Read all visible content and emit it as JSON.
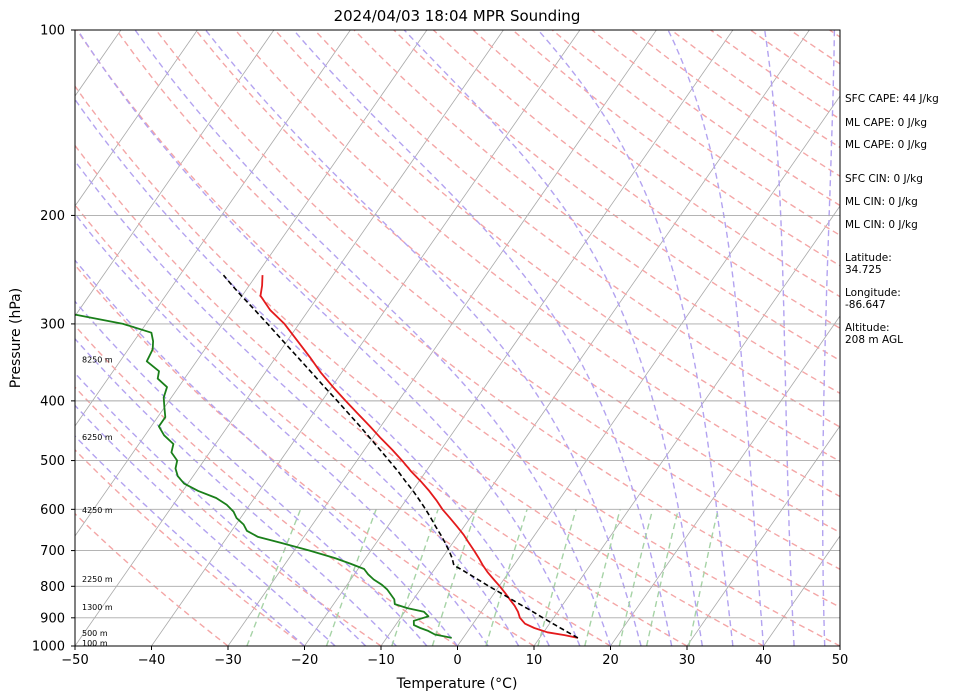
{
  "chart_data": {
    "type": "line",
    "title": "2024/04/03 18:04 MPR Sounding",
    "xlabel": "Temperature (°C)",
    "ylabel": "Pressure (hPa)",
    "xlim": [
      -50,
      50
    ],
    "ylim": [
      1000,
      100
    ],
    "yscale": "log",
    "skew": true,
    "grid": true,
    "x_ticks": [
      -50,
      -40,
      -30,
      -20,
      -10,
      0,
      10,
      20,
      30,
      40,
      50
    ],
    "y_ticks": [
      100,
      200,
      300,
      400,
      500,
      600,
      700,
      800,
      900,
      1000
    ],
    "colors": {
      "temperature": "#e41a1c",
      "dewpoint": "#1a7f1a",
      "parcel": "#000000",
      "isotherm": "#a9a9a9",
      "dry_adiabat": "#f4a6a6",
      "moist_adiabat": "#b3a3f0",
      "mixing_ratio": "#a6d3a6"
    },
    "series": [
      {
        "key": "temperature",
        "pressure": [
          970,
          960,
          950,
          935,
          920,
          900,
          880,
          860,
          840,
          820,
          800,
          780,
          760,
          740,
          720,
          700,
          680,
          660,
          640,
          620,
          600,
          580,
          560,
          540,
          520,
          500,
          480,
          460,
          440,
          420,
          400,
          380,
          360,
          340,
          320,
          300,
          285,
          270,
          260,
          250
        ],
        "values": [
          15.0,
          13.0,
          10.5,
          8.4,
          6.8,
          5.6,
          4.8,
          3.8,
          2.6,
          1.4,
          0.1,
          -1.3,
          -2.7,
          -4.0,
          -5.2,
          -6.5,
          -7.9,
          -9.3,
          -10.9,
          -12.6,
          -14.4,
          -16.0,
          -17.8,
          -19.8,
          -22.0,
          -24.1,
          -26.4,
          -28.9,
          -31.4,
          -34.1,
          -36.9,
          -39.8,
          -42.7,
          -45.5,
          -48.6,
          -51.9,
          -55.0,
          -57.6,
          -58.3,
          -59.2
        ]
      },
      {
        "key": "dewpoint",
        "pressure": [
          970,
          965,
          958,
          945,
          935,
          925,
          910,
          895,
          880,
          868,
          855,
          840,
          825,
          810,
          795,
          780,
          765,
          750,
          735,
          720,
          700,
          680,
          665,
          650,
          635,
          620,
          605,
          590,
          575,
          560,
          545,
          530,
          515,
          500,
          485,
          470,
          455,
          440,
          425,
          410,
          395,
          380,
          368,
          358,
          345,
          330,
          320,
          310,
          300,
          290,
          280,
          273
        ],
        "values": [
          -1.5,
          -2.5,
          -4.0,
          -5.2,
          -6.5,
          -7.6,
          -8.0,
          -6.5,
          -7.5,
          -10.0,
          -12.0,
          -12.5,
          -13.4,
          -14.3,
          -15.5,
          -17.0,
          -18.2,
          -19.2,
          -21.5,
          -24.0,
          -28.0,
          -32.5,
          -36.0,
          -38.0,
          -39.0,
          -40.5,
          -41.5,
          -43.0,
          -45.0,
          -48.0,
          -50.5,
          -52.0,
          -53.0,
          -53.5,
          -55.0,
          -55.5,
          -57.5,
          -59.0,
          -59.0,
          -60.0,
          -61.0,
          -61.5,
          -63.5,
          -64.0,
          -66.5,
          -66.8,
          -67.5,
          -68.5,
          -73.0,
          -80.0,
          -92.0,
          -101.0
        ]
      },
      {
        "key": "parcel",
        "pressure": [
          970,
          950,
          925,
          900,
          875,
          850,
          825,
          800,
          775,
          750,
          740,
          720,
          700,
          680,
          660,
          640,
          620,
          600,
          580,
          560,
          540,
          520,
          500,
          480,
          460,
          440,
          420,
          400,
          380,
          360,
          340,
          320,
          300,
          285,
          270,
          260,
          250
        ],
        "values": [
          15.0,
          13.2,
          10.9,
          8.6,
          6.3,
          3.8,
          1.3,
          -1.3,
          -3.9,
          -6.6,
          -7.8,
          -8.7,
          -9.8,
          -11.0,
          -12.3,
          -13.7,
          -15.1,
          -16.6,
          -18.2,
          -19.9,
          -21.8,
          -23.7,
          -25.8,
          -28.0,
          -30.3,
          -32.7,
          -35.3,
          -38.0,
          -40.9,
          -43.9,
          -47.1,
          -50.5,
          -54.1,
          -57.0,
          -60.1,
          -62.2,
          -64.3
        ]
      }
    ],
    "height_labels": [
      {
        "text": "100 m",
        "pressure": 988
      },
      {
        "text": "500 m",
        "pressure": 953
      },
      {
        "text": "1300 m",
        "pressure": 865
      },
      {
        "text": "2250 m",
        "pressure": 778
      },
      {
        "text": "4250 m",
        "pressure": 602
      },
      {
        "text": "6250 m",
        "pressure": 458
      },
      {
        "text": "8250 m",
        "pressure": 343
      }
    ],
    "annotations": [
      "SFC CAPE: 44 J/kg",
      "ML CAPE: 0 J/kg",
      "ML CAPE: 0 J/kg",
      "SFC CIN: 0 J/kg",
      "ML CIN: 0 J/kg",
      "ML CIN: 0 J/kg",
      "Latitude:",
      "34.725",
      "Longitude:",
      "-86.647",
      "Altitude:",
      "208 m AGL"
    ]
  }
}
